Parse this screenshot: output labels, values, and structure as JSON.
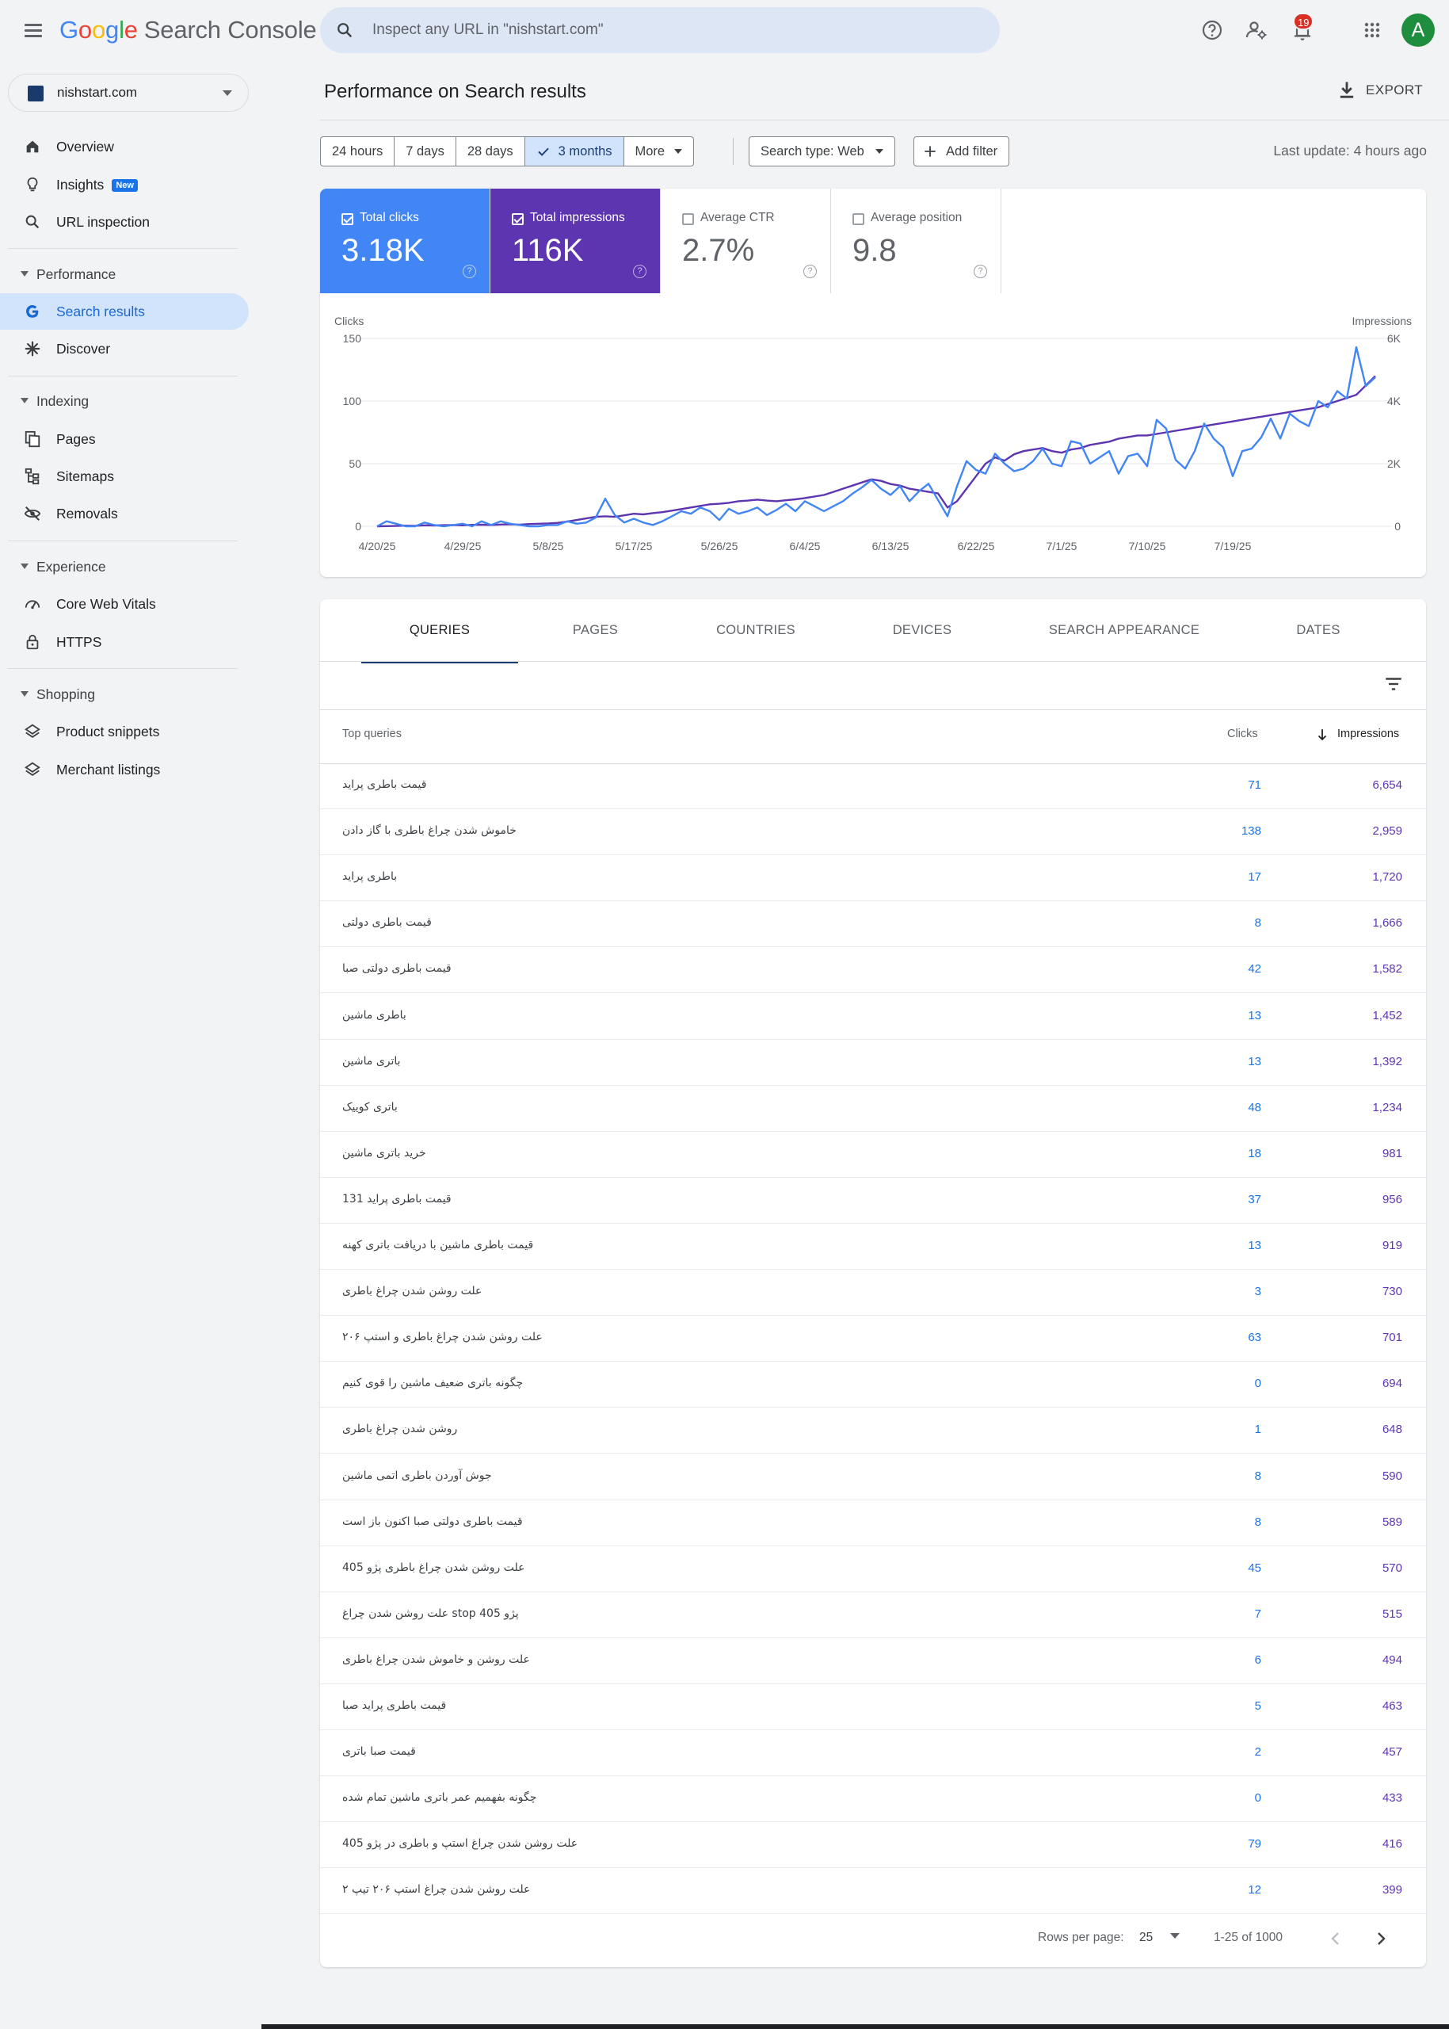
{
  "app": {
    "brand_letters": [
      "G",
      "o",
      "o",
      "g",
      "l",
      "e"
    ],
    "product": "Search Console"
  },
  "search": {
    "placeholder": "Inspect any URL in \"nishstart.com\""
  },
  "notifications": {
    "count": "19"
  },
  "account": {
    "initial": "A",
    "color": "#1e8e3e"
  },
  "property": {
    "name": "nishstart.com"
  },
  "sidebar": {
    "overview": "Overview",
    "insights": "Insights",
    "insights_badge": "New",
    "url_inspection": "URL inspection",
    "performance": "Performance",
    "search_results": "Search results",
    "discover": "Discover",
    "indexing": "Indexing",
    "pages": "Pages",
    "sitemaps": "Sitemaps",
    "removals": "Removals",
    "experience": "Experience",
    "core_web_vitals": "Core Web Vitals",
    "https": "HTTPS",
    "shopping": "Shopping",
    "product_snippets": "Product snippets",
    "merchant_listings": "Merchant listings"
  },
  "header": {
    "title": "Performance on Search results",
    "export": "EXPORT"
  },
  "filters": {
    "ranges": [
      "24 hours",
      "7 days",
      "28 days",
      "3 months",
      "More"
    ],
    "selected_range": "3 months",
    "search_type": "Search type: Web",
    "add_filter": "Add filter",
    "last_update": "Last update: 4 hours ago"
  },
  "metrics": [
    {
      "label": "Total clicks",
      "value": "3.18K",
      "checked": true,
      "color": "#4285f4"
    },
    {
      "label": "Total impressions",
      "value": "116K",
      "checked": true,
      "color": "#5e35b1"
    },
    {
      "label": "Average CTR",
      "value": "2.7%",
      "checked": false
    },
    {
      "label": "Average position",
      "value": "9.8",
      "checked": false
    }
  ],
  "chart_data": {
    "type": "line",
    "ylabel_left": "Clicks",
    "ylabel_right": "Impressions",
    "y_left_ticks": [
      "0",
      "50",
      "100",
      "150"
    ],
    "y_right_ticks": [
      "0",
      "2K",
      "4K",
      "6K"
    ],
    "ylim_left": [
      0,
      150
    ],
    "ylim_right": [
      0,
      6000
    ],
    "x_tick_labels": [
      "4/20/25",
      "4/29/25",
      "5/8/25",
      "5/17/25",
      "5/26/25",
      "6/4/25",
      "6/13/25",
      "6/22/25",
      "7/1/25",
      "7/10/25",
      "7/19/25"
    ],
    "x_start": "4/20/25",
    "grid": true,
    "series": [
      {
        "name": "Clicks",
        "axis": "left",
        "color": "#4285f4",
        "values": [
          0,
          4,
          2,
          0,
          0,
          3,
          1,
          0,
          1,
          2,
          0,
          4,
          1,
          4,
          2,
          1,
          0,
          0,
          1,
          1,
          4,
          2,
          3,
          7,
          22,
          9,
          3,
          6,
          3,
          1,
          4,
          8,
          12,
          10,
          15,
          12,
          5,
          14,
          10,
          12,
          15,
          9,
          13,
          18,
          12,
          20,
          16,
          12,
          16,
          20,
          26,
          31,
          37,
          30,
          25,
          32,
          20,
          28,
          34,
          21,
          8,
          32,
          52,
          45,
          42,
          58,
          50,
          44,
          46,
          52,
          62,
          50,
          48,
          68,
          66,
          50,
          55,
          60,
          42,
          56,
          58,
          48,
          85,
          78,
          53,
          46,
          60,
          82,
          70,
          63,
          40,
          60,
          62,
          71,
          86,
          70,
          90,
          84,
          80,
          100,
          95,
          108,
          102,
          143,
          112,
          119
        ]
      },
      {
        "name": "Impressions",
        "axis": "right",
        "color": "#5e35b1",
        "values": [
          0,
          5,
          10,
          20,
          15,
          30,
          25,
          35,
          40,
          30,
          45,
          50,
          40,
          55,
          60,
          50,
          70,
          80,
          90,
          110,
          150,
          200,
          250,
          300,
          320,
          300,
          350,
          400,
          380,
          420,
          450,
          500,
          550,
          600,
          650,
          700,
          720,
          750,
          800,
          820,
          850,
          820,
          800,
          830,
          860,
          900,
          950,
          1000,
          1100,
          1200,
          1300,
          1400,
          1500,
          1450,
          1350,
          1300,
          1200,
          1150,
          1100,
          1050,
          600,
          800,
          1200,
          1600,
          2000,
          2200,
          2100,
          2300,
          2400,
          2450,
          2500,
          2400,
          2350,
          2450,
          2500,
          2600,
          2650,
          2700,
          2800,
          2850,
          2900,
          2900,
          2950,
          3000,
          3050,
          3100,
          3150,
          3200,
          3250,
          3300,
          3350,
          3400,
          3450,
          3500,
          3550,
          3600,
          3650,
          3700,
          3750,
          3800,
          3900,
          4000,
          4100,
          4200,
          4500,
          4800
        ]
      }
    ]
  },
  "table": {
    "tabs": [
      "QUERIES",
      "PAGES",
      "COUNTRIES",
      "DEVICES",
      "SEARCH APPEARANCE",
      "DATES"
    ],
    "active_tab": "QUERIES",
    "headers": {
      "query": "Top queries",
      "clicks": "Clicks",
      "impressions": "Impressions"
    },
    "rows": [
      {
        "query": "قیمت باطری پراید",
        "clicks": "71",
        "impressions": "6,654"
      },
      {
        "query": "خاموش شدن چراغ باطری با گاز دادن",
        "clicks": "138",
        "impressions": "2,959"
      },
      {
        "query": "باطری پراید",
        "clicks": "17",
        "impressions": "1,720"
      },
      {
        "query": "قیمت باطری دولتی",
        "clicks": "8",
        "impressions": "1,666"
      },
      {
        "query": "قیمت باطری دولتی صبا",
        "clicks": "42",
        "impressions": "1,582"
      },
      {
        "query": "باطری ماشین",
        "clicks": "13",
        "impressions": "1,452"
      },
      {
        "query": "باتری ماشین",
        "clicks": "13",
        "impressions": "1,392"
      },
      {
        "query": "باتری کوییک",
        "clicks": "48",
        "impressions": "1,234"
      },
      {
        "query": "خرید باتری ماشین",
        "clicks": "18",
        "impressions": "981"
      },
      {
        "query": "قیمت باطری پراید 131",
        "clicks": "37",
        "impressions": "956"
      },
      {
        "query": "قیمت باطری ماشین با دریافت باتری کهنه",
        "clicks": "13",
        "impressions": "919"
      },
      {
        "query": "علت روشن شدن چراغ باطری",
        "clicks": "3",
        "impressions": "730"
      },
      {
        "query": "علت روشن شدن چراغ باطری و استپ ۲۰۶",
        "clicks": "63",
        "impressions": "701"
      },
      {
        "query": "چگونه باتری ضعیف ماشین را قوی کنیم",
        "clicks": "0",
        "impressions": "694"
      },
      {
        "query": "روشن شدن چراغ باطری",
        "clicks": "1",
        "impressions": "648"
      },
      {
        "query": "جوش آوردن باطری اتمی ماشین",
        "clicks": "8",
        "impressions": "590"
      },
      {
        "query": "قیمت باطری دولتی صبا اکنون باز است",
        "clicks": "8",
        "impressions": "589"
      },
      {
        "query": "علت روشن شدن چراغ باطری پژو 405",
        "clicks": "45",
        "impressions": "570"
      },
      {
        "query": "علت روشن شدن چراغ stop پژو 405",
        "clicks": "7",
        "impressions": "515"
      },
      {
        "query": "علت روشن و خاموش شدن چراغ باطری",
        "clicks": "6",
        "impressions": "494"
      },
      {
        "query": "قیمت باطری پراید صبا",
        "clicks": "5",
        "impressions": "463"
      },
      {
        "query": "قیمت صبا باتری",
        "clicks": "2",
        "impressions": "457"
      },
      {
        "query": "چگونه بفهمیم عمر باتری ماشین تمام شده",
        "clicks": "0",
        "impressions": "433"
      },
      {
        "query": "علت روشن شدن چراغ استپ و باطری در پژو 405",
        "clicks": "79",
        "impressions": "416"
      },
      {
        "query": "علت روشن شدن چراغ استپ ۲۰۶ تیپ ۲",
        "clicks": "12",
        "impressions": "399"
      }
    ],
    "rows_per_page_label": "Rows per page:",
    "rows_per_page": "25",
    "range": "1-25 of 1000"
  }
}
